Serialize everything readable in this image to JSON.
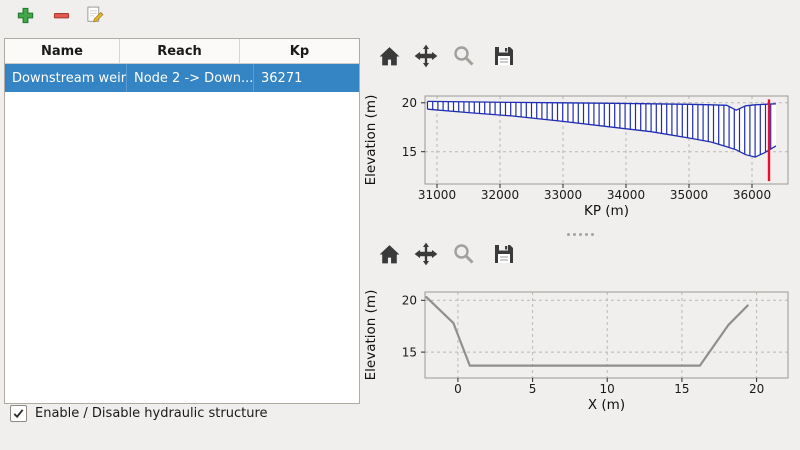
{
  "app_toolbar": {
    "add_tooltip": "Add hydraulic structure",
    "remove_tooltip": "Remove hydraulic structure",
    "edit_tooltip": "Edit hydraulic structure"
  },
  "structure_table": {
    "columns": [
      "Name",
      "Reach",
      "Kp"
    ],
    "rows": [
      {
        "name": "Downstream weir",
        "reach": "Node 2 -> Down...",
        "kp": "36271",
        "selected": true
      }
    ],
    "selection_color": "#3584c4"
  },
  "enable_checkbox": {
    "label": "Enable / Disable hydraulic structure",
    "checked": true
  },
  "plot_toolbar_icons": [
    "home-icon",
    "pan-icon",
    "zoom-icon",
    "save-icon"
  ],
  "colors": {
    "profile_hatch": "#1f2db4",
    "cursor_line": "#e8112d",
    "cross_section": "#8f8f8f",
    "window_bg": "#f0efed"
  },
  "chart_data": [
    {
      "type": "area",
      "title": "",
      "xlabel": "KP (m)",
      "ylabel": "Elevation (m)",
      "xlim": [
        30810,
        36572
      ],
      "ylim": [
        11.7,
        20.7
      ],
      "xticks": [
        31000,
        32000,
        33000,
        34000,
        35000,
        36000
      ],
      "yticks": [
        15,
        20
      ],
      "grid": true,
      "legend": "none",
      "hatch_fill": {
        "name": "longitudinal-profile-band",
        "color": "#1f2db4",
        "x": [
          30850,
          31500,
          32200,
          33000,
          33800,
          34400,
          35000,
          35350,
          35600,
          35750,
          35900,
          36050,
          36200,
          36380
        ],
        "top": [
          20.15,
          20.1,
          20.05,
          20.0,
          19.95,
          19.9,
          19.85,
          19.8,
          19.75,
          19.25,
          19.7,
          19.8,
          19.85,
          19.9
        ],
        "bottom": [
          19.35,
          19.0,
          18.65,
          18.1,
          17.5,
          17.05,
          16.4,
          16.0,
          15.5,
          15.2,
          14.7,
          14.45,
          14.9,
          15.6
        ]
      },
      "cursor_line": {
        "x": 36271,
        "y0": 12.0,
        "y1": 20.35,
        "color": "#e8112d"
      }
    },
    {
      "type": "line",
      "title": "",
      "xlabel": "X (m)",
      "ylabel": "Elevation (m)",
      "xlim": [
        -2.2,
        22.1
      ],
      "ylim": [
        12.5,
        20.8
      ],
      "xticks": [
        0,
        5,
        10,
        15,
        20
      ],
      "yticks": [
        15,
        20
      ],
      "grid": true,
      "legend": "none",
      "series": [
        {
          "name": "cross-section",
          "color": "#8f8f8f",
          "width": 2.2,
          "x": [
            -2.1,
            -0.3,
            0.8,
            16.2,
            18.1,
            19.4
          ],
          "y": [
            20.3,
            17.8,
            13.7,
            13.7,
            17.6,
            19.5
          ]
        }
      ]
    }
  ]
}
